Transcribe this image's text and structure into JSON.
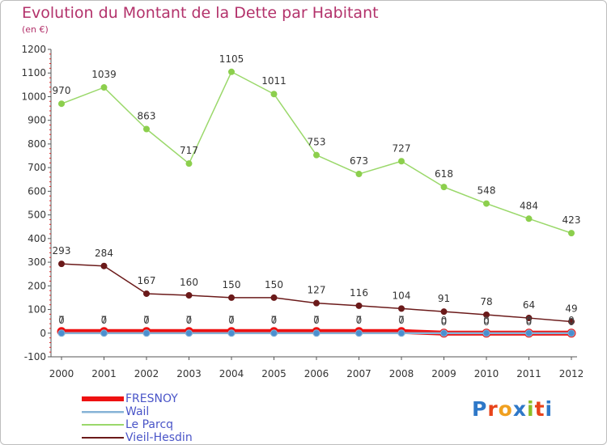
{
  "title": "Evolution du Montant de la Dette par Habitant",
  "subtitle": "(en €)",
  "logo_text": "Proxiti",
  "colors": {
    "title": "#b3326b",
    "fresnoy": "#ee1111",
    "wail": "#86b3d6",
    "le_parcq": "#9ad86a",
    "vieil_hesdin": "#6b1a1a",
    "legend_text": "#4a55c8"
  },
  "chart_data": {
    "type": "line",
    "title": "Evolution du Montant de la Dette par Habitant",
    "ylabel": "(en €)",
    "xlabel": "",
    "ylim": [
      -100,
      1200
    ],
    "yticks": [
      -100,
      0,
      100,
      200,
      300,
      400,
      500,
      600,
      700,
      800,
      900,
      1000,
      1100,
      1200
    ],
    "categories": [
      "2000",
      "2001",
      "2002",
      "2003",
      "2004",
      "2005",
      "2006",
      "2007",
      "2008",
      "2009",
      "2010",
      "2011",
      "2012"
    ],
    "grid": false,
    "legend_position": "bottom-left",
    "series": [
      {
        "name": "FRESNOY",
        "color": "#ee1111",
        "values": [
          7,
          7,
          7,
          7,
          7,
          7,
          7,
          7,
          7,
          0,
          0,
          0,
          0
        ],
        "labels": [
          "7",
          "7",
          "7",
          "7",
          "7",
          "7",
          "7",
          "7",
          "7",
          "0",
          "0",
          "0",
          "0"
        ]
      },
      {
        "name": "Wail",
        "color": "#86b3d6",
        "values": [
          0,
          0,
          0,
          0,
          0,
          0,
          0,
          0,
          0,
          0,
          0,
          0,
          0
        ],
        "labels": [
          "0",
          "0",
          "0",
          "0",
          "0",
          "0",
          "0",
          "0",
          "0",
          "0",
          "0",
          "0",
          "0"
        ]
      },
      {
        "name": "Le Parcq",
        "color": "#9ad86a",
        "values": [
          970,
          1039,
          863,
          717,
          1105,
          1011,
          753,
          673,
          727,
          618,
          548,
          484,
          423
        ],
        "labels": [
          "970",
          "1039",
          "863",
          "717",
          "1105",
          "1011",
          "753",
          "673",
          "727",
          "618",
          "548",
          "484",
          "423"
        ]
      },
      {
        "name": "Vieil-Hesdin",
        "color": "#6b1a1a",
        "values": [
          293,
          284,
          167,
          160,
          150,
          150,
          127,
          116,
          104,
          91,
          78,
          64,
          49
        ],
        "labels": [
          "293",
          "284",
          "167",
          "160",
          "150",
          "150",
          "127",
          "116",
          "104",
          "91",
          "78",
          "64",
          "49"
        ]
      }
    ]
  }
}
